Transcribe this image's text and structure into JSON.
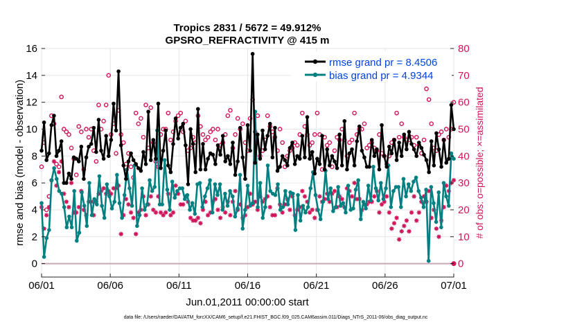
{
  "chart_data": {
    "type": "line",
    "title": "Tropics 2831 / 5672 = 49.912%",
    "subtitle": "GPSRO_REFRACTIVITY @ 415 m",
    "xlabel": "Jun.01,2011 00:00:00 start",
    "ylabel": "rmse and bias (model - observation)",
    "y2label": "# of obs: o=possible; ×=assimilated",
    "footer": "data file: /Users/raeder/DAI/ATM_forcXX/CAM6_setup/f.e21.FHIST_BGC.f09_025.CAM6assim.011/Diags_NTrS_2011-06/obs_diag_output.nc",
    "xlim": [
      0,
      30
    ],
    "ylim": [
      -1,
      16
    ],
    "y2lim": [
      -5,
      80
    ],
    "x_ticks": [
      0,
      5,
      10,
      15,
      20,
      25,
      30
    ],
    "x_tick_labels": [
      "06/01",
      "06/06",
      "06/11",
      "06/16",
      "06/21",
      "06/26",
      "07/01"
    ],
    "y_ticks": [
      0,
      2,
      4,
      6,
      8,
      10,
      12,
      14,
      16
    ],
    "y_tick_labels": [
      "0",
      "2",
      "4",
      "6",
      "8",
      "10",
      "12",
      "14",
      "16"
    ],
    "y2_ticks": [
      0,
      10,
      20,
      30,
      40,
      50,
      60,
      70,
      80
    ],
    "y2_tick_labels": [
      "0",
      "10",
      "20",
      "30",
      "40",
      "50",
      "60",
      "70",
      "80"
    ],
    "legend": {
      "position": "top-right",
      "entries": [
        "rmse grand pr = 8.4506",
        "bias grand pr = 4.9344"
      ]
    },
    "colors": {
      "rmse": "#000000",
      "bias": "#008080",
      "obs": "#d0145a",
      "legend_text": "#0044dd",
      "zero_line": "#c8a8b4",
      "y2_axis": "#d0145a"
    },
    "series": [
      {
        "name": "rmse",
        "y": [
          8.4,
          10.5,
          7.7,
          8.2,
          10.3,
          11.0,
          8.0,
          8.4,
          9.1,
          6.0,
          6.0,
          6.7,
          6.3,
          7.9,
          7.8,
          7.6,
          8.7,
          6.3,
          7.9,
          8.7,
          8.9,
          10.1,
          8.3,
          10.7,
          8.4,
          7.8,
          9.5,
          8.0,
          9.2,
          11.9,
          9.9,
          14.3,
          8.8,
          7.3,
          6.3,
          7.6,
          8.2,
          7.7,
          7.4,
          7.1,
          6.9,
          8.3,
          7.4,
          11.3,
          7.7,
          9.2,
          7.8,
          11.9,
          7.1,
          8.4,
          9.9,
          7.3,
          6.8,
          8.9,
          10.8,
          9.3,
          10.1,
          10.4,
          8.8,
          5.9,
          10.0,
          8.9,
          6.8,
          11.5,
          7.0,
          8.9,
          7.0,
          7.8,
          8.2,
          8.1,
          7.4,
          8.8,
          8.1,
          9.5,
          7.6,
          8.0,
          7.4,
          9.0,
          6.6,
          7.6,
          10.1,
          7.9,
          6.3,
          10.3,
          8.4,
          15.6,
          7.5,
          9.6,
          7.8,
          9.9,
          8.5,
          9.5,
          10.4,
          7.9,
          10.1,
          6.9,
          7.2,
          8.0,
          7.7,
          7.3,
          8.6,
          9.0,
          7.4,
          8.0,
          7.8,
          9.5,
          7.9,
          10.9,
          7.8,
          8.3,
          6.7,
          7.8,
          7.4,
          9.5,
          7.0,
          8.5,
          7.3,
          8.0,
          7.6,
          7.1,
          9.6,
          7.3,
          10.6,
          7.0,
          8.2,
          8.5,
          7.3,
          9.1,
          10.2,
          8.4,
          7.9,
          7.2,
          7.2,
          9.2,
          8.0,
          8.5,
          7.0,
          10.3,
          8.0,
          7.2,
          8.7,
          8.2,
          9.2,
          7.7,
          9.0,
          8.0,
          9.6,
          8.5,
          9.8,
          8.9,
          8.5,
          8.0,
          9.0,
          8.6,
          8.1,
          7.7,
          6.8,
          9.1,
          7.3,
          9.7,
          8.5,
          7.2,
          9.2,
          7.5,
          7.8,
          11.8,
          10.0
        ]
      },
      {
        "name": "bias",
        "y": [
          4.5,
          0.5,
          1.9,
          2.5,
          6.2,
          7.1,
          6.3,
          5.4,
          5.2,
          4.2,
          2.7,
          3.5,
          2.7,
          5.4,
          1.7,
          2.3,
          5.3,
          4.3,
          2.8,
          6.0,
          3.6,
          4.8,
          4.4,
          6.5,
          4.3,
          3.4,
          5.9,
          5.0,
          4.1,
          4.6,
          6.6,
          4.5,
          3.4,
          5.1,
          7.0,
          5.6,
          4.3,
          7.3,
          2.8,
          3.6,
          5.6,
          4.0,
          4.4,
          6.2,
          5.4,
          5.7,
          9.9,
          4.4,
          4.4,
          7.7,
          5.5,
          4.0,
          6.1,
          4.9,
          5.4,
          5.6,
          5.6,
          4.8,
          5.1,
          4.0,
          4.5,
          3.7,
          5.9,
          6.0,
          4.2,
          5.0,
          5.6,
          6.2,
          3.8,
          5.9,
          5.1,
          5.9,
          4.0,
          5.2,
          4.3,
          5.4,
          5.0,
          3.5,
          4.1,
          6.6,
          2.6,
          4.0,
          5.8,
          4.3,
          4.5,
          11.3,
          4.2,
          6.0,
          3.4,
          4.2,
          7.3,
          5.4,
          5.2,
          5.1,
          5.9,
          4.0,
          4.2,
          5.4,
          4.4,
          5.3,
          5.2,
          2.5,
          5.1,
          3.2,
          4.3,
          3.8,
          4.2,
          5.6,
          6.8,
          5.1,
          4.0,
          3.3,
          4.6,
          6.9,
          4.8,
          5.6,
          3.9,
          4.2,
          5.7,
          4.3,
          4.5,
          3.8,
          5.8,
          4.0,
          4.1,
          5.5,
          6.2,
          3.3,
          4.6,
          4.1,
          5.8,
          4.7,
          7.2,
          5.6,
          4.7,
          6.0,
          4.8,
          5.6,
          7.3,
          4.2,
          5.4,
          5.7,
          5.7,
          4.2,
          6.3,
          5.0,
          5.9,
          5.4,
          6.1,
          6.4,
          5.4,
          4.9,
          4.2,
          5.5,
          0.2,
          5.7,
          4.5,
          3.1,
          5.3,
          2.7,
          6.0,
          5.0,
          4.3,
          8.2,
          7.8
        ]
      },
      {
        "name": "obs possible",
        "y": [
          36,
          45,
          20,
          25,
          55,
          52,
          37,
          36,
          62,
          50,
          49,
          48,
          43,
          39,
          33,
          51,
          49,
          35,
          50,
          47,
          50,
          42,
          38,
          59,
          50,
          53,
          59,
          70,
          48,
          52,
          41,
          57,
          48,
          45,
          37,
          41,
          36,
          32,
          56,
          52,
          54,
          47,
          59,
          43,
          58,
          45,
          38,
          36,
          48,
          50,
          50,
          56,
          46,
          49,
          53,
          55,
          56,
          49,
          53,
          42,
          43,
          47,
          45,
          55,
          51,
          48,
          46,
          47,
          49,
          50,
          46,
          50,
          44,
          45,
          48,
          55,
          57,
          43,
          48,
          54,
          50,
          52,
          45,
          42,
          54,
          61,
          49,
          55,
          40,
          42,
          46,
          55,
          51,
          49,
          47,
          42,
          50,
          45,
          36,
          40,
          42,
          43,
          45,
          44,
          48,
          56,
          51,
          48,
          44,
          45,
          48,
          56,
          48,
          35,
          47,
          44,
          45,
          36,
          42,
          47,
          46,
          50,
          46,
          40,
          45,
          46,
          56,
          48,
          50,
          50,
          52,
          43,
          44,
          45,
          43,
          42,
          48,
          41,
          40,
          37,
          40,
          45,
          46,
          56,
          47,
          52,
          47,
          46,
          46,
          47,
          44,
          47,
          44,
          41,
          46,
          65,
          61,
          52,
          43,
          42,
          48,
          49,
          46,
          50,
          47,
          50,
          60
        ]
      },
      {
        "name": "obs assimilated",
        "y": [
          21,
          13,
          18,
          21,
          31,
          38,
          29,
          34,
          38,
          26,
          23,
          21,
          30,
          19,
          19,
          21,
          27,
          20,
          18,
          23,
          23,
          18,
          23,
          26,
          27,
          28,
          26,
          27,
          26,
          28,
          28,
          29,
          11,
          18,
          24,
          22,
          19,
          17,
          11,
          19,
          20,
          25,
          18,
          22,
          25,
          20,
          19,
          25,
          19,
          18,
          19,
          26,
          18,
          19,
          29,
          26,
          22,
          22,
          25,
          23,
          17,
          16,
          16,
          17,
          15,
          20,
          23,
          18,
          19,
          23,
          24,
          20,
          17,
          21,
          19,
          23,
          18,
          23,
          27,
          20,
          22,
          17,
          18,
          21,
          26,
          22,
          23,
          20,
          25,
          23,
          24,
          25,
          21,
          18,
          18,
          28,
          22,
          19,
          22,
          24,
          20,
          25,
          18,
          20,
          21,
          27,
          25,
          23,
          19,
          20,
          17,
          20,
          25,
          23,
          24,
          26,
          23,
          26,
          27,
          21,
          25,
          24,
          21,
          28,
          27,
          25,
          30,
          24,
          24,
          20,
          22,
          22,
          23,
          23,
          25,
          27,
          19,
          22,
          23,
          25,
          19,
          13,
          15,
          17,
          9,
          12,
          14,
          16,
          12,
          19,
          25,
          16,
          19,
          23,
          25,
          23,
          27,
          17,
          20,
          13,
          10,
          16,
          21,
          29,
          27,
          30,
          31
        ]
      }
    ]
  }
}
